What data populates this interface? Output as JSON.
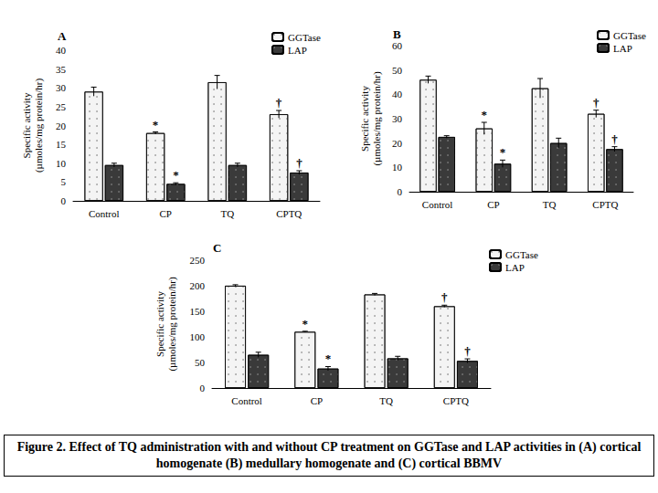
{
  "caption": "Figure 2. Effect of TQ administration with and without CP treatment on GGTase and LAP activities in (A) cortical homogenate (B) medullary homogenate  and (C) cortical BBMV",
  "chart_data": [
    {
      "type": "bar",
      "title": "A",
      "y_label": "Specific activity (µmoles/mg protein/hr)",
      "categories": [
        "Control",
        "CP",
        "TQ",
        "CPTQ"
      ],
      "series": [
        {
          "name": "GGTase",
          "color": "#f4f4f4",
          "values": [
            29,
            18,
            31.5,
            23
          ],
          "errors": [
            1.2,
            0.3,
            1.8,
            1
          ],
          "annotations": [
            null,
            "*",
            null,
            "†"
          ]
        },
        {
          "name": "LAP",
          "color": "#3a3a3a",
          "values": [
            9.5,
            4.5,
            9.5,
            7.5
          ],
          "errors": [
            0.5,
            0.3,
            0.5,
            0.5
          ],
          "annotations": [
            null,
            "*",
            null,
            "†"
          ]
        }
      ],
      "ylim": [
        0,
        40
      ],
      "yticks": [
        0,
        5,
        10,
        15,
        20,
        25,
        30,
        35,
        40
      ],
      "grid": false,
      "legend": "top right"
    },
    {
      "type": "bar",
      "title": "B",
      "y_label": "Specific activity (µmoles/mg protein/hr)",
      "categories": [
        "Control",
        "CP",
        "TQ",
        "CPTQ"
      ],
      "series": [
        {
          "name": "GGTase",
          "color": "#f4f4f4",
          "values": [
            46,
            26,
            42.5,
            32
          ],
          "errors": [
            1.5,
            2.5,
            4,
            1.5
          ],
          "annotations": [
            null,
            "*",
            null,
            "†"
          ]
        },
        {
          "name": "LAP",
          "color": "#3a3a3a",
          "values": [
            22.5,
            11.5,
            20,
            17.5
          ],
          "errors": [
            0.5,
            1.5,
            2,
            1
          ],
          "annotations": [
            null,
            "*",
            null,
            "†"
          ]
        }
      ],
      "ylim": [
        0,
        60
      ],
      "yticks": [
        0,
        10,
        20,
        30,
        40,
        50,
        60
      ],
      "grid": false,
      "legend": "top right"
    },
    {
      "type": "bar",
      "title": "C",
      "y_label": "Specific activity (µmoles/mg protein/hr)",
      "categories": [
        "Control",
        "CP",
        "TQ",
        "CPTQ"
      ],
      "series": [
        {
          "name": "GGTase",
          "color": "#f4f4f4",
          "values": [
            200,
            110,
            183,
            160
          ],
          "errors": [
            2,
            1,
            2,
            2
          ],
          "annotations": [
            null,
            "*",
            null,
            "†"
          ]
        },
        {
          "name": "LAP",
          "color": "#3a3a3a",
          "values": [
            65,
            38,
            58,
            53
          ],
          "errors": [
            5,
            4,
            4,
            4
          ],
          "annotations": [
            null,
            "*",
            null,
            "†"
          ]
        }
      ],
      "ylim": [
        0,
        250
      ],
      "yticks": [
        0,
        50,
        100,
        150,
        200,
        250
      ],
      "grid": false,
      "legend": "top right"
    }
  ]
}
